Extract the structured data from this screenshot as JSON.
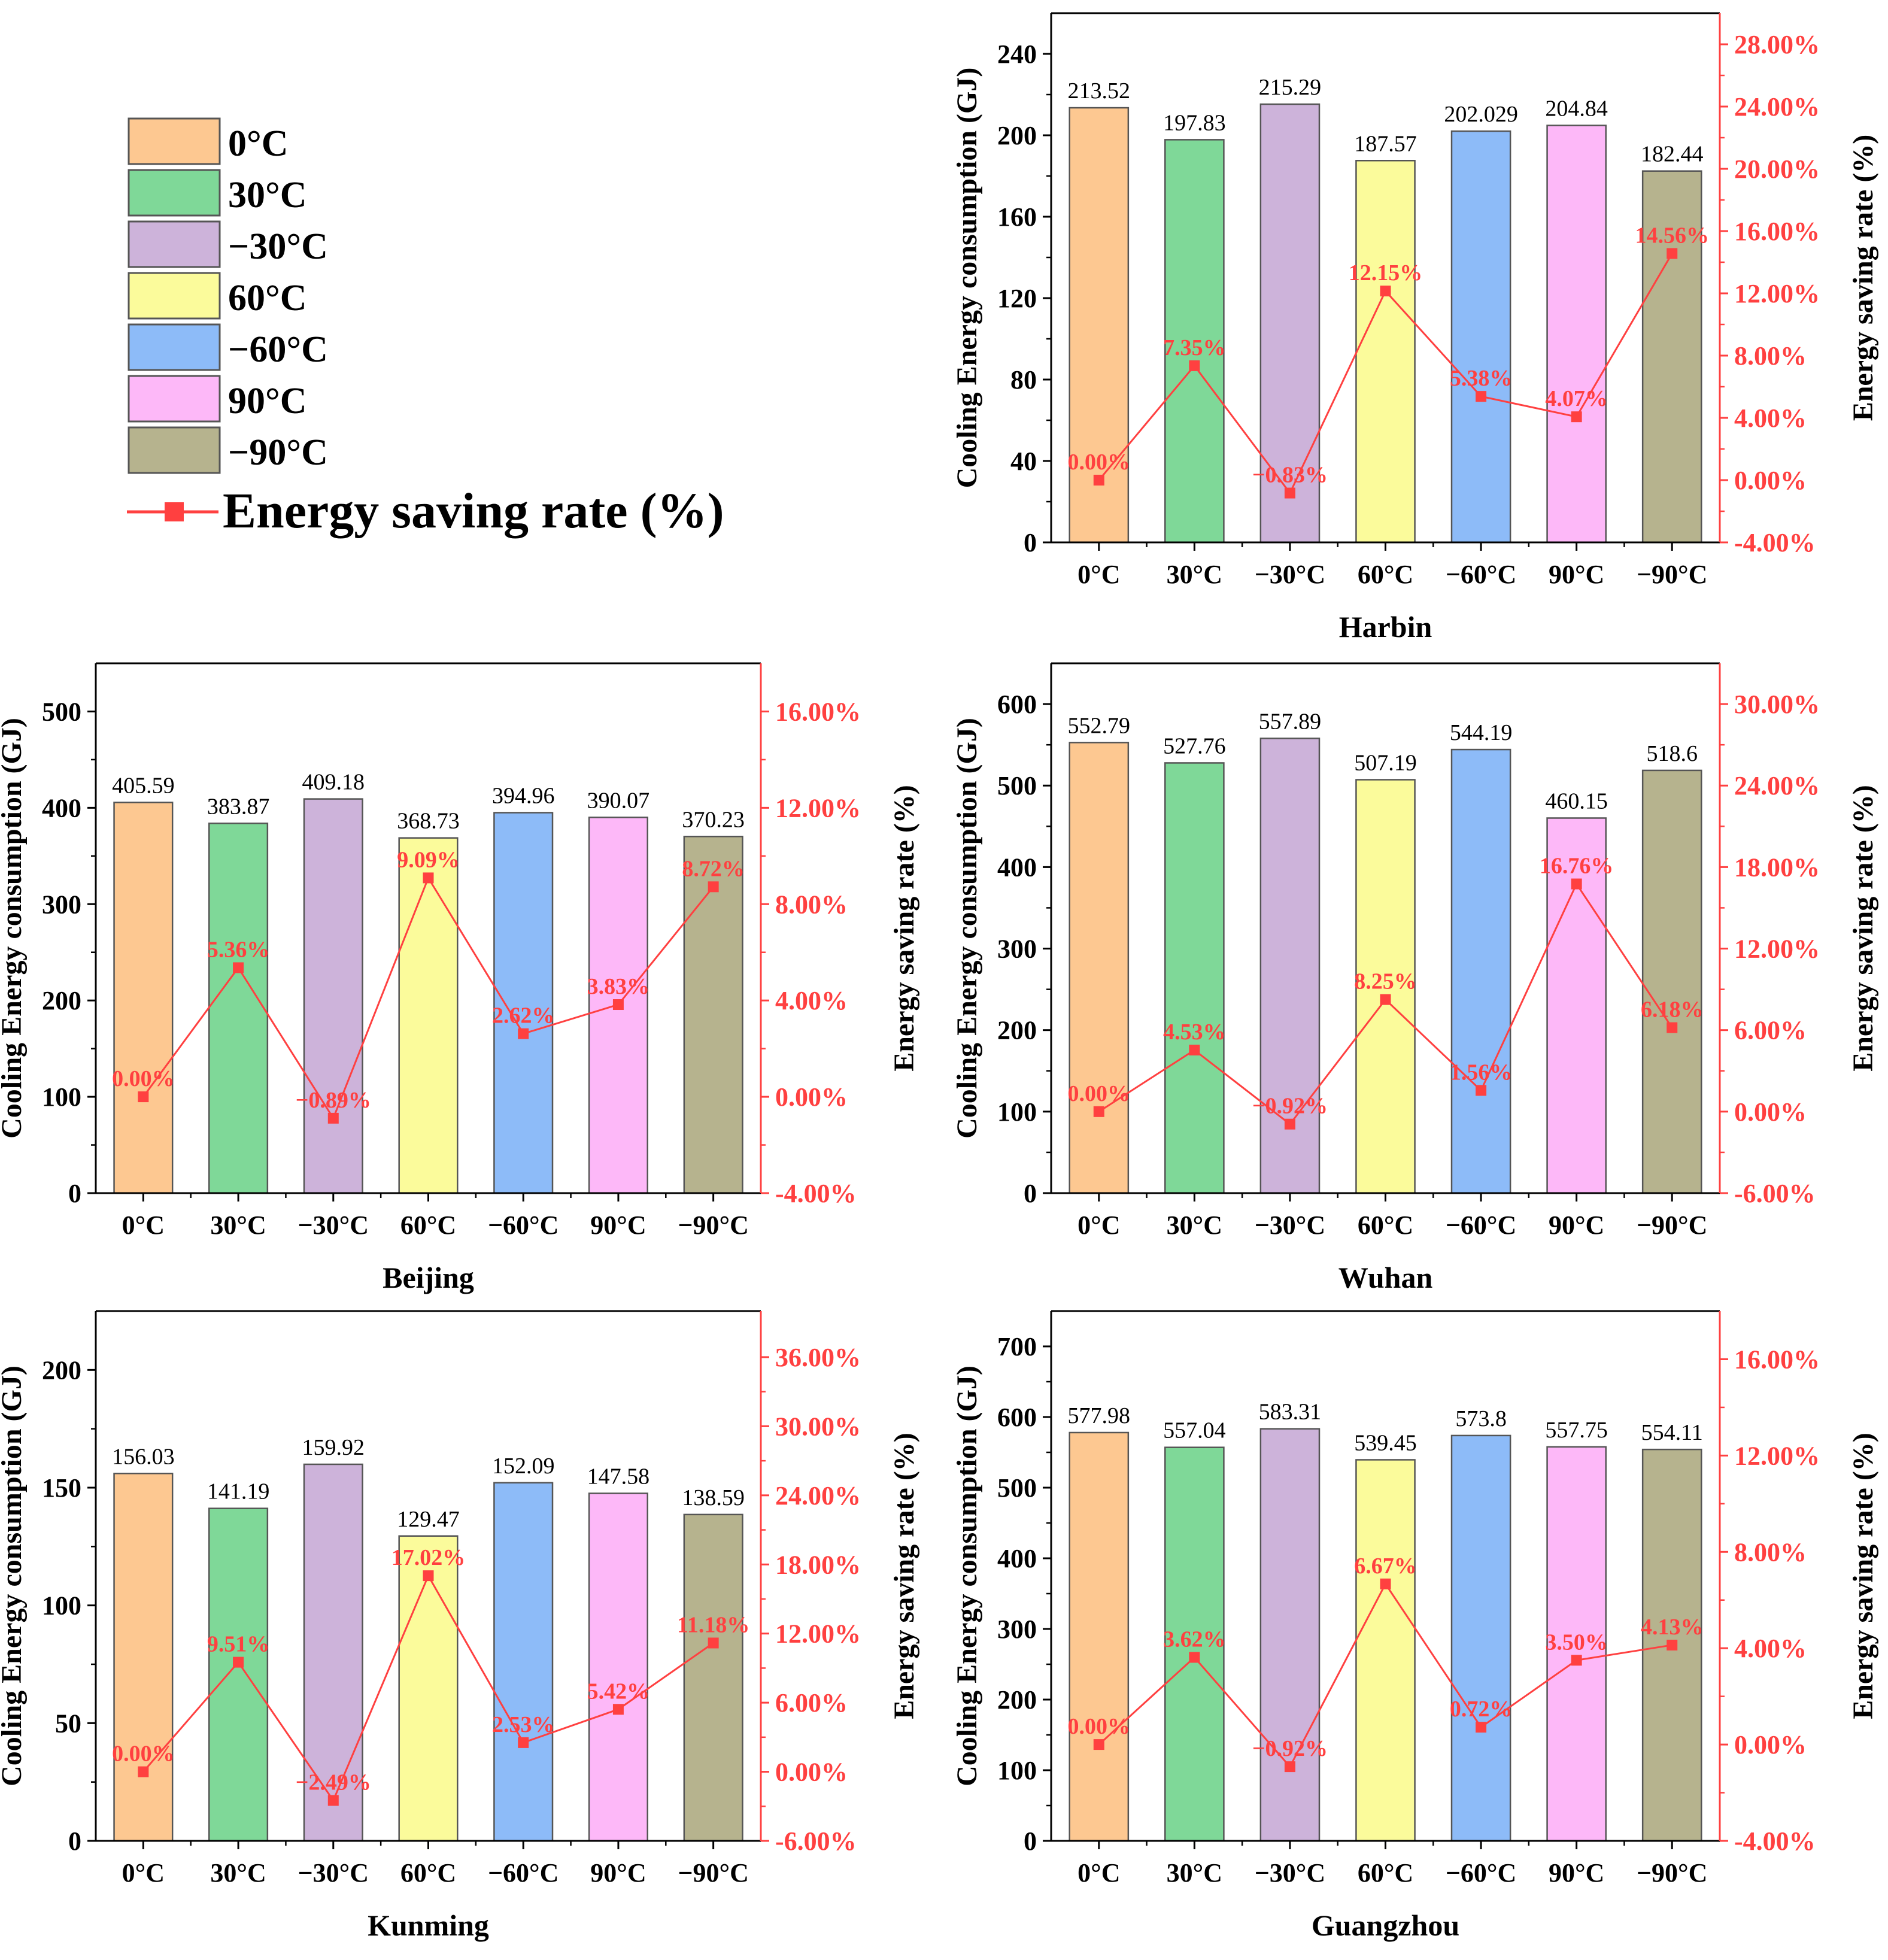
{
  "legend": {
    "items": [
      {
        "label": "0°C",
        "color": "#FDC891"
      },
      {
        "label": "30°C",
        "color": "#7FD898"
      },
      {
        "label": "−30°C",
        "color": "#CDB3DA"
      },
      {
        "label": "60°C",
        "color": "#FBFB9B"
      },
      {
        "label": "−60°C",
        "color": "#8DBBF8"
      },
      {
        "label": "90°C",
        "color": "#FDB8F8"
      },
      {
        "label": "−90°C",
        "color": "#B6B38E"
      }
    ],
    "line_label": "Energy saving rate (%)",
    "line_color": "#FF4040"
  },
  "chart_data": [
    {
      "type": "bar",
      "title": "Harbin",
      "categories": [
        "0°C",
        "30°C",
        "−30°C",
        "60°C",
        "−60°C",
        "90°C",
        "−90°C"
      ],
      "values": [
        213.52,
        197.83,
        215.29,
        187.57,
        202.029,
        204.84,
        182.44
      ],
      "value_labels": [
        "213.52",
        "197.83",
        "215.29",
        "187.57",
        "202.029",
        "204.84",
        "182.44"
      ],
      "ylabel": "Cooling Energy consumption (GJ)",
      "ylim": [
        0,
        260
      ],
      "yticks": [
        0,
        40,
        80,
        120,
        160,
        200,
        240
      ],
      "ytick_labels": [
        "0",
        "40",
        "80",
        "120",
        "160",
        "200",
        "240"
      ],
      "y2label": "Energy saving rate (%)",
      "y2lim": [
        -4,
        30
      ],
      "y2ticks": [
        -4,
        0,
        4,
        8,
        12,
        16,
        20,
        24,
        28
      ],
      "y2tick_labels": [
        "-4.00%",
        "0.00%",
        "4.00%",
        "8.00%",
        "12.00%",
        "16.00%",
        "20.00%",
        "24.00%",
        "28.00%"
      ],
      "rates": [
        0.0,
        7.35,
        -0.83,
        12.15,
        5.38,
        4.07,
        14.56
      ],
      "rate_labels": [
        "0.00%",
        "7.35%",
        "−0.83%",
        "12.15%",
        "5.38%",
        "4.07%",
        "14.56%"
      ]
    },
    {
      "type": "bar",
      "title": "Beijing",
      "categories": [
        "0°C",
        "30°C",
        "−30°C",
        "60°C",
        "−60°C",
        "90°C",
        "−90°C"
      ],
      "values": [
        405.59,
        383.87,
        409.18,
        368.73,
        394.96,
        390.07,
        370.23
      ],
      "value_labels": [
        "405.59",
        "383.87",
        "409.18",
        "368.73",
        "394.96",
        "390.07",
        "370.23"
      ],
      "ylabel": "Cooling Energy consumption (GJ)",
      "ylim": [
        0,
        550
      ],
      "yticks": [
        0,
        100,
        200,
        300,
        400,
        500
      ],
      "ytick_labels": [
        "0",
        "100",
        "200",
        "300",
        "400",
        "500"
      ],
      "y2label": "Energy saving rate (%)",
      "y2lim": [
        -4,
        18
      ],
      "y2ticks": [
        -4,
        0,
        4,
        8,
        12,
        16
      ],
      "y2tick_labels": [
        "-4.00%",
        "0.00%",
        "4.00%",
        "8.00%",
        "12.00%",
        "16.00%"
      ],
      "rates": [
        0.0,
        5.36,
        -0.89,
        9.09,
        2.62,
        3.83,
        8.72
      ],
      "rate_labels": [
        "0.00%",
        "5.36%",
        "−0.89%",
        "9.09%",
        "2.62%",
        "3.83%",
        "8.72%"
      ]
    },
    {
      "type": "bar",
      "title": "Wuhan",
      "categories": [
        "0°C",
        "30°C",
        "−30°C",
        "60°C",
        "−60°C",
        "90°C",
        "−90°C"
      ],
      "values": [
        552.79,
        527.76,
        557.89,
        507.19,
        544.19,
        460.15,
        518.6
      ],
      "value_labels": [
        "552.79",
        "527.76",
        "557.89",
        "507.19",
        "544.19",
        "460.15",
        "518.6"
      ],
      "ylabel": "Cooling Energy consumption (GJ)",
      "ylim": [
        0,
        650
      ],
      "yticks": [
        0,
        100,
        200,
        300,
        400,
        500,
        600
      ],
      "ytick_labels": [
        "0",
        "100",
        "200",
        "300",
        "400",
        "500",
        "600"
      ],
      "y2label": "Energy saving rate (%)",
      "y2lim": [
        -6,
        33
      ],
      "y2ticks": [
        -6,
        0,
        6,
        12,
        18,
        24,
        30
      ],
      "y2tick_labels": [
        "-6.00%",
        "0.00%",
        "6.00%",
        "12.00%",
        "18.00%",
        "24.00%",
        "30.00%"
      ],
      "rates": [
        0.0,
        4.53,
        -0.92,
        8.25,
        1.56,
        16.76,
        6.18
      ],
      "rate_labels": [
        "0.00%",
        "4.53%",
        "−0.92%",
        "8.25%",
        "1.56%",
        "16.76%",
        "6.18%"
      ]
    },
    {
      "type": "bar",
      "title": "Kunming",
      "categories": [
        "0°C",
        "30°C",
        "−30°C",
        "60°C",
        "−60°C",
        "90°C",
        "−90°C"
      ],
      "values": [
        156.03,
        141.19,
        159.92,
        129.47,
        152.09,
        147.58,
        138.59
      ],
      "value_labels": [
        "156.03",
        "141.19",
        "159.92",
        "129.47",
        "152.09",
        "147.58",
        "138.59"
      ],
      "ylabel": "Cooling Energy consumption (GJ)",
      "ylim": [
        0,
        225
      ],
      "yticks": [
        0,
        50,
        100,
        150,
        200
      ],
      "ytick_labels": [
        "0",
        "50",
        "100",
        "150",
        "200"
      ],
      "y2label": "Energy saving rate (%)",
      "y2lim": [
        -6,
        40
      ],
      "y2ticks": [
        -6,
        0,
        6,
        12,
        18,
        24,
        30,
        36
      ],
      "y2tick_labels": [
        "-6.00%",
        "0.00%",
        "6.00%",
        "12.00%",
        "18.00%",
        "24.00%",
        "30.00%",
        "36.00%"
      ],
      "rates": [
        0.0,
        9.51,
        -2.49,
        17.02,
        2.53,
        5.42,
        11.18
      ],
      "rate_labels": [
        "0.00%",
        "9.51%",
        "−2.49%",
        "17.02%",
        "2.53%",
        "5.42%",
        "11.18%"
      ]
    },
    {
      "type": "bar",
      "title": "Guangzhou",
      "categories": [
        "0°C",
        "30°C",
        "−30°C",
        "60°C",
        "−60°C",
        "90°C",
        "−90°C"
      ],
      "values": [
        577.98,
        557.04,
        583.31,
        539.45,
        573.8,
        557.75,
        554.11
      ],
      "value_labels": [
        "577.98",
        "557.04",
        "583.31",
        "539.45",
        "573.8",
        "557.75",
        "554.11"
      ],
      "ylabel": "Cooling Energy consumption (GJ)",
      "ylim": [
        0,
        750
      ],
      "yticks": [
        0,
        100,
        200,
        300,
        400,
        500,
        600,
        700
      ],
      "ytick_labels": [
        "0",
        "100",
        "200",
        "300",
        "400",
        "500",
        "600",
        "700"
      ],
      "y2label": "Energy saving rate (%)",
      "y2lim": [
        -4,
        18
      ],
      "y2ticks": [
        -4,
        0,
        4,
        8,
        12,
        16
      ],
      "y2tick_labels": [
        "-4.00%",
        "0.00%",
        "4.00%",
        "8.00%",
        "12.00%",
        "16.00%"
      ],
      "rates": [
        0.0,
        3.62,
        -0.92,
        6.67,
        0.72,
        3.5,
        4.13
      ],
      "rate_labels": [
        "0.00%",
        "3.62%",
        "−0.92%",
        "6.67%",
        "0.72%",
        "3.50%",
        "4.13%"
      ]
    }
  ]
}
